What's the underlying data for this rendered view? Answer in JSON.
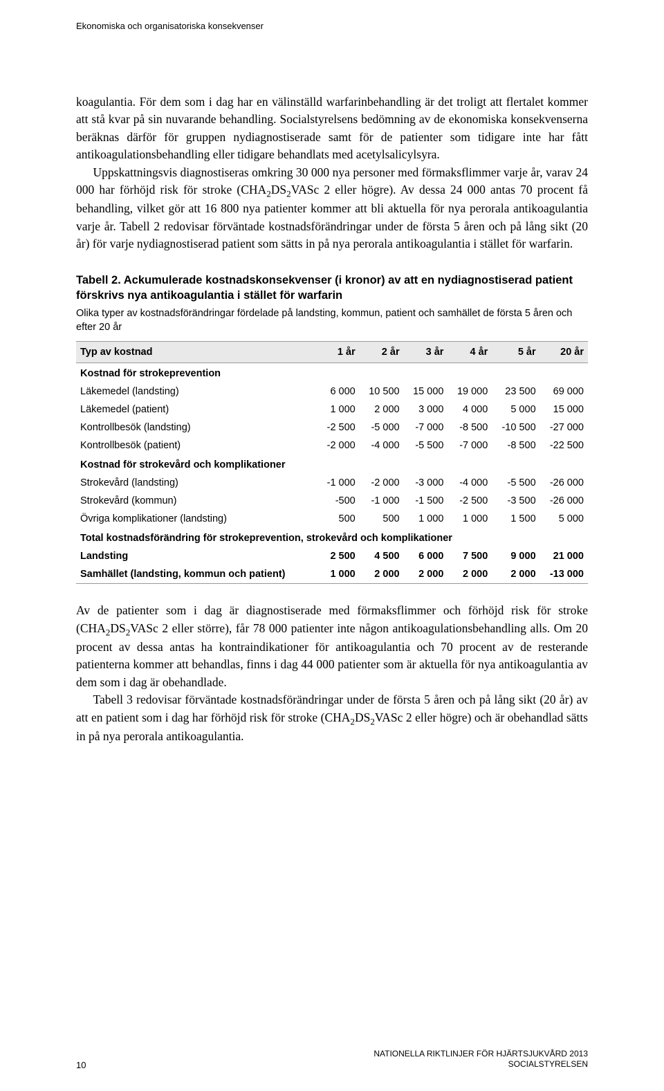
{
  "header": "Ekonomiska och organisatoriska konsekvenser",
  "paragraph1_html": "koagulantia. För dem som i dag har en välinställd warfarinbehandling är det troligt att flertalet kommer att stå kvar på sin nuvarande behandling. Socialstyrelsens bedömning av de ekonomiska konsekvenserna beräknas därför för gruppen nydiagnostiserade samt för de patienter som tidigare inte har fått antikoagulationsbehandling eller tidigare behandlats med acetylsalicylsyra.<span class=\"indent\">Uppskattningsvis diagnostiseras omkring 30 000 nya personer med förmaksflimmer varje år, varav 24 000 har förhöjd risk för stroke (CHA<sub>2</sub>DS<sub>2</sub>VASc 2 eller högre). Av dessa 24 000 antas 70 procent få behandling, vilket gör att 16 800 nya patienter kommer att bli aktuella för nya perorala antikoagulantia varje år. Tabell 2 redovisar förväntade kostnadsförändringar under de första 5 åren och på lång sikt (20 år) för varje nydiagnostiserad patient som sätts in på nya perorala antikoagulantia i stället för warfarin.</span>",
  "table2": {
    "title": "Tabell 2. Ackumulerade kostnadskonsekvenser (i kronor) av att en nydiagnostiserad patient förskrivs nya antikoagulantia i stället för warfarin",
    "subtitle": "Olika typer av kostnadsförändringar fördelade på landsting, kommun, patient och samhället de första 5 åren och efter 20 år",
    "columns": [
      "Typ av kostnad",
      "1 år",
      "2 år",
      "3 år",
      "4 år",
      "5 år",
      "20 år"
    ],
    "section1_label": "Kostnad för strokeprevention",
    "section1_rows": [
      [
        "Läkemedel (landsting)",
        "6 000",
        "10 500",
        "15 000",
        "19 000",
        "23 500",
        "69 000"
      ],
      [
        "Läkemedel (patient)",
        "1 000",
        "2 000",
        "3 000",
        "4 000",
        "5 000",
        "15 000"
      ],
      [
        "Kontrollbesök (landsting)",
        "-2 500",
        "-5 000",
        "-7 000",
        "-8 500",
        "-10 500",
        "-27 000"
      ],
      [
        "Kontrollbesök (patient)",
        "-2 000",
        "-4 000",
        "-5 500",
        "-7 000",
        "-8 500",
        "-22 500"
      ]
    ],
    "section2_label": "Kostnad för strokevård och komplikationer",
    "section2_rows": [
      [
        "Strokevård (landsting)",
        "-1 000",
        "-2 000",
        "-3 000",
        "-4 000",
        "-5 500",
        "-26 000"
      ],
      [
        "Strokevård (kommun)",
        "-500",
        "-1 000",
        "-1 500",
        "-2 500",
        "-3 500",
        "-26 000"
      ],
      [
        "Övriga komplikationer (landsting)",
        "500",
        "500",
        "1 000",
        "1 000",
        "1 500",
        "5 000"
      ]
    ],
    "section3_label": "Total kostnadsförändring för strokeprevention, strokevård och komplikationer",
    "section3_rows": [
      [
        "Landsting",
        "2 500",
        "4 500",
        "6 000",
        "7 500",
        "9 000",
        "21 000"
      ],
      [
        "Samhället (landsting, kommun och patient)",
        "1 000",
        "2 000",
        "2 000",
        "2 000",
        "2 000",
        "-13 000"
      ]
    ]
  },
  "paragraph2_html": "Av de patienter som i dag är diagnostiserade med förmaksflimmer och förhöjd risk för stroke (CHA<sub>2</sub>DS<sub>2</sub>VASc 2 eller större), får 78 000 patienter inte någon antikoagulationsbehandling alls. Om 20 procent av dessa antas ha kontraindikationer för antikoagulantia och 70 procent av de resterande patienterna kommer att behandlas, finns i dag 44 000 patienter som är aktuella för nya antikoagulantia av dem som i dag är obehandlade.<span class=\"indent\">Tabell 3 redovisar förväntade kostnadsförändringar under de första 5 åren och på lång sikt (20 år) av att en patient som i dag har förhöjd risk för stroke (CHA<sub>2</sub>DS<sub>2</sub>VASc 2 eller högre) och är obehandlad sätts in på nya perorala antikoagulantia.</span>",
  "footer": {
    "page": "10",
    "right_line1": "NATIONELLA RIKTLINJER FÖR HJÄRTSJUKVÅRD 2013",
    "right_line2": "SOCIALSTYRELSEN"
  }
}
